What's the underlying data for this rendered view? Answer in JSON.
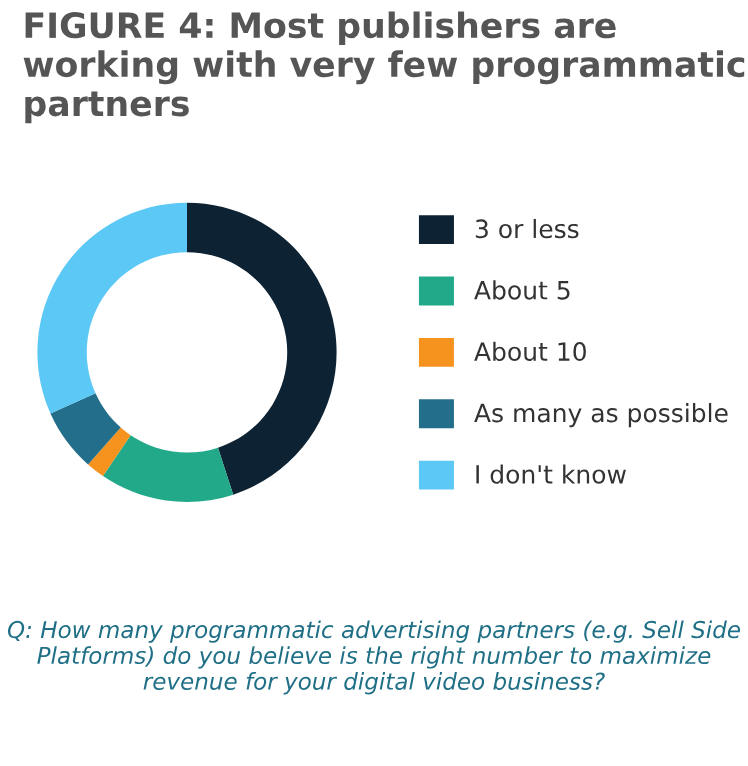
{
  "chart_data": {
    "type": "donut",
    "title": "FIGURE 4: Most publishers are working with very few programmatic partners",
    "categories": [
      "3 or less",
      "About 5",
      "About 10",
      "As many as possible",
      "I don't know"
    ],
    "values": [
      45,
      14.5,
      2,
      6.8,
      31.7
    ],
    "colors": [
      "#0d2233",
      "#22a98a",
      "#f6931e",
      "#236e8a",
      "#5bc8f5"
    ],
    "legend": "right",
    "annotations": [
      "Q: How many programmatic advertising partners (e.g. Sell Side Platforms) do you believe is the right number to maximize revenue for your digital video business?"
    ]
  }
}
